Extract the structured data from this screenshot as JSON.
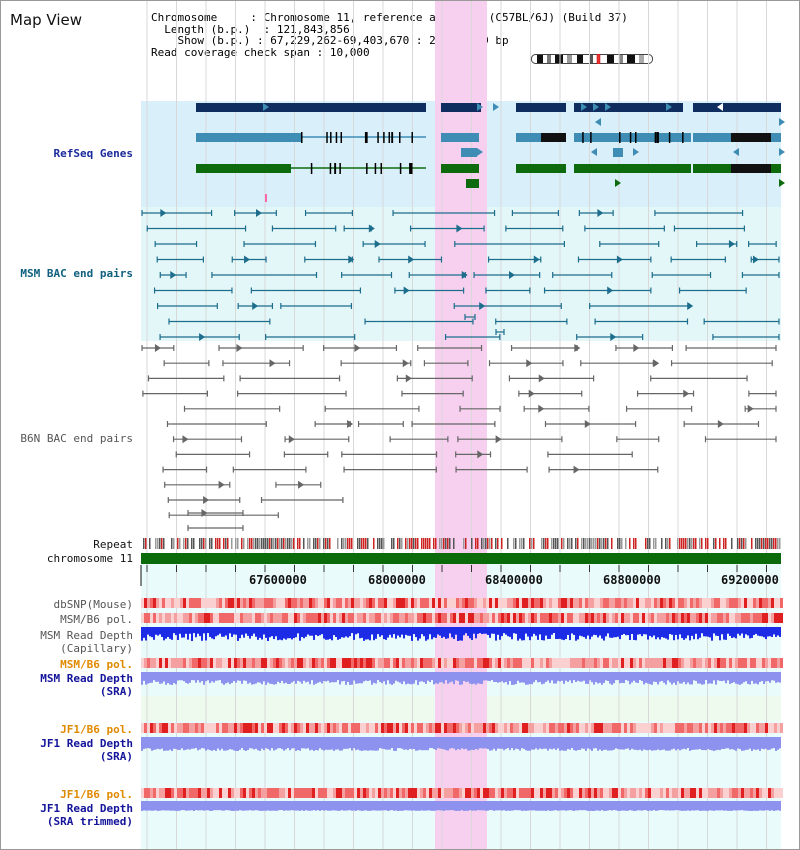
{
  "app_title": "Map View",
  "info": {
    "chromosome_label": "Chromosome",
    "chromosome_value": "Chromosome 11, reference assembly (C57BL/6J) (Build 37)",
    "length_label": "Length (b.p.)",
    "length_value": "121,843,856",
    "show_label": "Show (b.p.)",
    "show_value": "67,229,262-69,403,670 : 2,174,409 bp",
    "coverage_label": "Read coverage check span",
    "coverage_value": "10,000"
  },
  "tracks": {
    "refseq": "RefSeq Genes",
    "msm_bac": "MSM BAC end pairs",
    "b6n_bac": "B6N BAC end pairs",
    "repeat": "Repeat",
    "chromosome": "chromosome 11",
    "dbsnp": "dbSNP(Mouse)",
    "msm_b6_pol_1": "MSM/B6 pol.",
    "msm_read_depth_cap_1": "MSM Read Depth",
    "msm_read_depth_cap_2": "(Capillary)",
    "msm_b6_pol_2": "MSM/B6 pol.",
    "msm_read_depth_sra_1": "MSM Read Depth",
    "msm_read_depth_sra_2": "(SRA)",
    "jf1_b6_pol_1": "JF1/B6 pol.",
    "jf1_read_depth_sra_1": "JF1 Read Depth",
    "jf1_read_depth_sra_2": "(SRA)",
    "jf1_b6_pol_2": "JF1/B6 pol.",
    "jf1_read_depth_trim_1": "JF1 Read Depth",
    "jf1_read_depth_trim_2": "(SRA trimmed)"
  },
  "axis_ticks": [
    "67600000",
    "68000000",
    "68400000",
    "68800000",
    "69200000"
  ],
  "colors": {
    "refseq_bg": "#d9effa",
    "msm_bac_bg": "#e3f7f8",
    "highlight": "#f7d0ef",
    "gene_dark": "#0f2d5f",
    "gene_mid": "#3f8db4",
    "gene_green": "#0d6b0d",
    "bac_teal": "#1d6d8d",
    "bac_gray": "#666666",
    "chrom_green": "#0b6b0b",
    "depth_blue": "#1c2be6",
    "depth_light": "#8c92ee"
  }
}
